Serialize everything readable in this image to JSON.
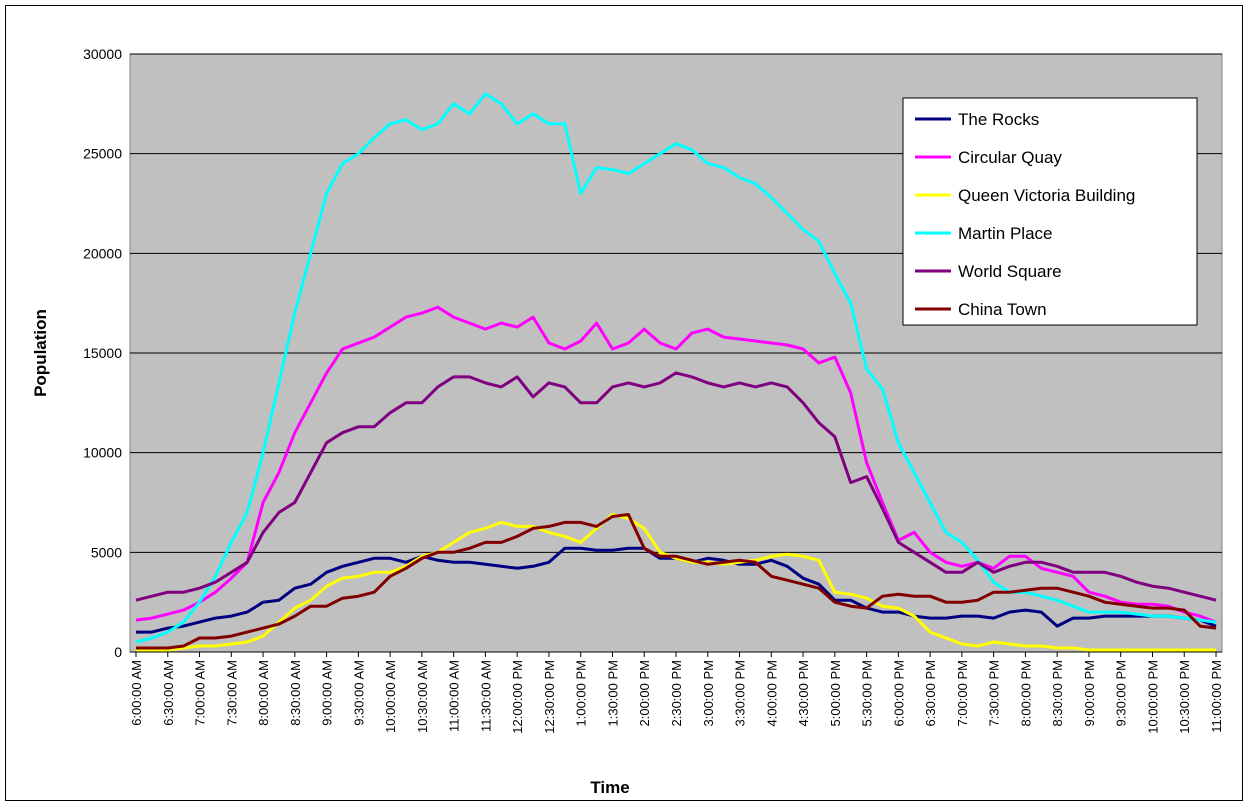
{
  "chart_data": {
    "type": "line",
    "xlabel": "Time",
    "ylabel": "Population",
    "categories": [
      "6:00:00 AM",
      null,
      "6:30:00 AM",
      null,
      "7:00:00 AM",
      null,
      "7:30:00 AM",
      null,
      "8:00:00 AM",
      null,
      "8:30:00 AM",
      null,
      "9:00:00 AM",
      null,
      "9:30:00 AM",
      null,
      "10:00:00 AM",
      null,
      "10:30:00 AM",
      null,
      "11:00:00 AM",
      null,
      "11:30:00 AM",
      null,
      "12:00:00 PM",
      null,
      "12:30:00 PM",
      null,
      "1:00:00 PM",
      null,
      "1:30:00 PM",
      null,
      "2:00:00 PM",
      null,
      "2:30:00 PM",
      null,
      "3:00:00 PM",
      null,
      "3:30:00 PM",
      null,
      "4:00:00 PM",
      null,
      "4:30:00 PM",
      null,
      "5:00:00 PM",
      null,
      "5:30:00 PM",
      null,
      "6:00:00 PM",
      null,
      "6:30:00 PM",
      null,
      "7:00:00 PM",
      null,
      "7:30:00 PM",
      null,
      "8:00:00 PM",
      null,
      "8:30:00 PM",
      null,
      "9:00:00 PM",
      null,
      "9:30:00 PM",
      null,
      "10:00:00 PM",
      null,
      "10:30:00 PM",
      null,
      "11:00:00 PM"
    ],
    "series": [
      {
        "name": "The Rocks",
        "color": "#000080",
        "values": [
          1000,
          1000,
          1200,
          1300,
          1500,
          1700,
          1800,
          2000,
          2500,
          2600,
          3200,
          3400,
          4000,
          4300,
          4500,
          4700,
          4700,
          4500,
          4800,
          4600,
          4500,
          4500,
          4400,
          4300,
          4200,
          4300,
          4500,
          5200,
          5200,
          5100,
          5100,
          5200,
          5200,
          4700,
          4700,
          4500,
          4700,
          4600,
          4400,
          4400,
          4600,
          4300,
          3700,
          3400,
          2600,
          2600,
          2200,
          2000,
          2000,
          1800,
          1700,
          1700,
          1800,
          1800,
          1700,
          2000,
          2100,
          2000,
          1300,
          1700,
          1700,
          1800,
          1800,
          1800,
          1800,
          1800,
          1700,
          1600,
          1300
        ]
      },
      {
        "name": "Circular Quay",
        "color": "#ff00ff",
        "values": [
          1600,
          1700,
          1900,
          2100,
          2500,
          3000,
          3700,
          4500,
          7500,
          9000,
          11000,
          12500,
          14000,
          15200,
          15500,
          15800,
          16300,
          16800,
          17000,
          17300,
          16800,
          16500,
          16200,
          16500,
          16300,
          16800,
          15500,
          15200,
          15600,
          16500,
          15200,
          15500,
          16200,
          15500,
          15200,
          16000,
          16200,
          15800,
          15700,
          15600,
          15500,
          15400,
          15200,
          14500,
          14800,
          13000,
          9500,
          7500,
          5600,
          6000,
          5000,
          4500,
          4300,
          4500,
          4200,
          4800,
          4800,
          4200,
          4000,
          3800,
          3000,
          2800,
          2500,
          2400,
          2400,
          2300,
          2000,
          1800,
          1500
        ]
      },
      {
        "name": "Queen Victoria Building",
        "color": "#ffff00",
        "values": [
          100,
          100,
          100,
          200,
          300,
          300,
          400,
          500,
          800,
          1500,
          2200,
          2600,
          3300,
          3700,
          3800,
          4000,
          4000,
          4300,
          4800,
          5000,
          5500,
          6000,
          6200,
          6500,
          6300,
          6300,
          6000,
          5800,
          5500,
          6200,
          6900,
          6700,
          6200,
          5000,
          4700,
          4500,
          4500,
          4400,
          4500,
          4600,
          4800,
          4900,
          4800,
          4600,
          3000,
          2900,
          2700,
          2300,
          2200,
          1800,
          1000,
          700,
          400,
          300,
          500,
          400,
          300,
          300,
          200,
          200,
          100,
          100,
          100,
          100,
          100,
          100,
          100,
          100,
          100
        ]
      },
      {
        "name": "Martin Place",
        "color": "#00ffff",
        "values": [
          500,
          700,
          1000,
          1500,
          2500,
          3800,
          5500,
          7000,
          10000,
          13500,
          17000,
          20000,
          23000,
          24500,
          25000,
          25800,
          26500,
          26700,
          26200,
          26500,
          27500,
          27000,
          28000,
          27500,
          26500,
          27000,
          26500,
          26500,
          23000,
          24300,
          24200,
          24000,
          24500,
          25000,
          25500,
          25200,
          24500,
          24300,
          23800,
          23500,
          22800,
          22000,
          21200,
          20600,
          19000,
          17500,
          14200,
          13200,
          10500,
          9000,
          7500,
          6000,
          5500,
          4600,
          3500,
          3000,
          3000,
          2800,
          2600,
          2300,
          2000,
          2000,
          2000,
          1900,
          1800,
          1800,
          1700,
          1600,
          1500
        ]
      },
      {
        "name": "World Square",
        "color": "#800080",
        "values": [
          2600,
          2800,
          3000,
          3000,
          3200,
          3500,
          4000,
          4500,
          6000,
          7000,
          7500,
          9000,
          10500,
          11000,
          11300,
          11300,
          12000,
          12500,
          12500,
          13300,
          13800,
          13800,
          13500,
          13300,
          13800,
          12800,
          13500,
          13300,
          12500,
          12500,
          13300,
          13500,
          13300,
          13500,
          14000,
          13800,
          13500,
          13300,
          13500,
          13300,
          13500,
          13300,
          12500,
          11500,
          10800,
          8500,
          8800,
          7200,
          5500,
          5000,
          4500,
          4000,
          4000,
          4500,
          4000,
          4300,
          4500,
          4500,
          4300,
          4000,
          4000,
          4000,
          3800,
          3500,
          3300,
          3200,
          3000,
          2800,
          2600
        ]
      },
      {
        "name": "China Town",
        "color": "#800000",
        "values": [
          200,
          200,
          200,
          300,
          700,
          700,
          800,
          1000,
          1200,
          1400,
          1800,
          2300,
          2300,
          2700,
          2800,
          3000,
          3800,
          4200,
          4700,
          5000,
          5000,
          5200,
          5500,
          5500,
          5800,
          6200,
          6300,
          6500,
          6500,
          6300,
          6800,
          6900,
          5200,
          4800,
          4800,
          4600,
          4400,
          4500,
          4600,
          4500,
          3800,
          3600,
          3400,
          3200,
          2500,
          2300,
          2200,
          2800,
          2900,
          2800,
          2800,
          2500,
          2500,
          2600,
          3000,
          3000,
          3100,
          3200,
          3200,
          3000,
          2800,
          2500,
          2400,
          2300,
          2200,
          2200,
          2100,
          1300,
          1200
        ]
      }
    ],
    "ylim": [
      0,
      30000
    ],
    "yticks": [
      0,
      5000,
      10000,
      15000,
      20000,
      25000,
      30000
    ],
    "grid": true,
    "legend": "upper right",
    "background": "#c0c0c0"
  }
}
